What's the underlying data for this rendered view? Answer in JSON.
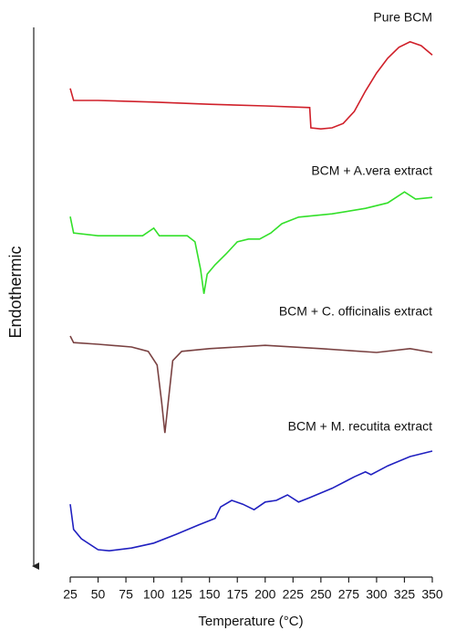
{
  "chart_data": {
    "type": "line",
    "y_label": "Endothermic",
    "x_label": "Temperature (°C)",
    "xlim": [
      25,
      350
    ],
    "xticks": [
      25,
      50,
      75,
      100,
      125,
      150,
      175,
      200,
      225,
      250,
      275,
      300,
      325,
      350
    ],
    "ylim": [
      0,
      100
    ],
    "series": [
      {
        "name": "Pure BCM",
        "color": "#d0202a",
        "x": [
          25,
          28,
          50,
          100,
          150,
          200,
          240,
          241,
          250,
          260,
          270,
          280,
          290,
          300,
          310,
          320,
          330,
          340,
          350
        ],
        "values": [
          89.2,
          87.0,
          87.0,
          86.7,
          86.3,
          86.0,
          85.7,
          82.0,
          81.8,
          82.0,
          82.8,
          85.0,
          88.7,
          92.0,
          94.7,
          96.7,
          97.7,
          97.0,
          95.3
        ]
      },
      {
        "name": "BCM + A.vera extract",
        "color": "#33e02a",
        "x": [
          25,
          28,
          50,
          90,
          100,
          105,
          130,
          137,
          142,
          145,
          148,
          155,
          165,
          175,
          185,
          195,
          205,
          215,
          230,
          260,
          290,
          310,
          325,
          335,
          350
        ],
        "values": [
          65.8,
          62.8,
          62.3,
          62.3,
          63.7,
          62.3,
          62.3,
          61.2,
          56.2,
          51.7,
          55.3,
          57.0,
          59.0,
          61.2,
          61.7,
          61.7,
          62.8,
          64.5,
          65.7,
          66.3,
          67.3,
          68.3,
          70.3,
          69.0,
          69.3
        ]
      },
      {
        "name": "BCM + C. officinalis extract",
        "color": "#7a4242",
        "x": [
          25,
          28,
          50,
          80,
          95,
          103,
          107,
          110,
          113,
          117,
          125,
          150,
          200,
          250,
          300,
          330,
          350
        ],
        "values": [
          44.0,
          42.8,
          42.5,
          42.0,
          41.2,
          38.7,
          32.0,
          26.3,
          32.0,
          39.5,
          41.2,
          41.7,
          42.3,
          41.7,
          41.0,
          41.7,
          41.0
        ]
      },
      {
        "name": "BCM + M. recutita extract",
        "color": "#2020c0",
        "x": [
          25,
          28,
          35,
          50,
          60,
          80,
          100,
          120,
          140,
          155,
          160,
          170,
          180,
          190,
          200,
          210,
          220,
          230,
          240,
          260,
          280,
          290,
          295,
          310,
          330,
          350
        ],
        "values": [
          13.3,
          8.7,
          7.0,
          5.0,
          4.8,
          5.3,
          6.2,
          7.8,
          9.5,
          10.7,
          12.8,
          14.0,
          13.3,
          12.3,
          13.7,
          14.0,
          15.0,
          13.7,
          14.5,
          16.2,
          18.3,
          19.2,
          18.7,
          20.3,
          22.0,
          23.0
        ]
      }
    ]
  }
}
